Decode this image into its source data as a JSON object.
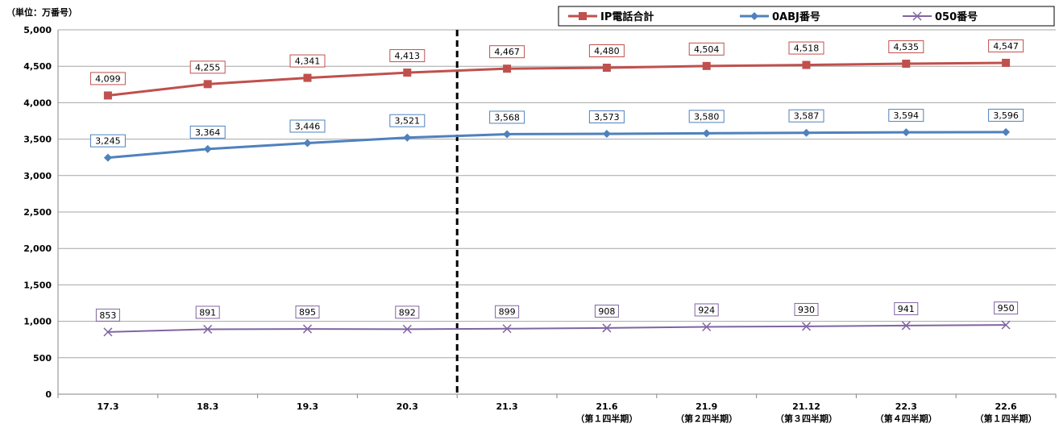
{
  "chart_data": {
    "type": "line",
    "unit_label": "（単位：万番号）",
    "ylim": [
      0,
      5000
    ],
    "yticks": [
      "0",
      "500",
      "1,000",
      "1,500",
      "2,000",
      "2,500",
      "3,000",
      "3,500",
      "4,000",
      "4,500",
      "5,000"
    ],
    "categories": [
      "17.3",
      "18.3",
      "19.3",
      "20.3",
      "21.3",
      "21.6",
      "21.9",
      "21.12",
      "22.3",
      "22.6"
    ],
    "category_sublabels": [
      "",
      "",
      "",
      "",
      "",
      "（第１四半期）",
      "（第２四半期）",
      "（第３四半期）",
      "（第４四半期）",
      "（第１四半期）"
    ],
    "divider_after_category": "20.3",
    "grid": true,
    "legend_position": "top-right",
    "series": [
      {
        "name": "IP電話合計",
        "color": "#c0504d",
        "marker": "square",
        "values": [
          4099,
          4255,
          4341,
          4413,
          4467,
          4480,
          4504,
          4518,
          4535,
          4547
        ],
        "labels": [
          "4,099",
          "4,255",
          "4,341",
          "4,413",
          "4,467",
          "4,480",
          "4,504",
          "4,518",
          "4,535",
          "4,547"
        ]
      },
      {
        "name": "0ABJ番号",
        "color": "#4f81bd",
        "marker": "diamond",
        "values": [
          3245,
          3364,
          3446,
          3521,
          3568,
          3573,
          3580,
          3587,
          3594,
          3596
        ],
        "labels": [
          "3,245",
          "3,364",
          "3,446",
          "3,521",
          "3,568",
          "3,573",
          "3,580",
          "3,587",
          "3,594",
          "3,596"
        ]
      },
      {
        "name": "050番号",
        "color": "#8064a2",
        "marker": "x",
        "values": [
          853,
          891,
          895,
          892,
          899,
          908,
          924,
          930,
          941,
          950
        ],
        "labels": [
          "853",
          "891",
          "895",
          "892",
          "899",
          "908",
          "924",
          "930",
          "941",
          "950"
        ]
      }
    ]
  }
}
